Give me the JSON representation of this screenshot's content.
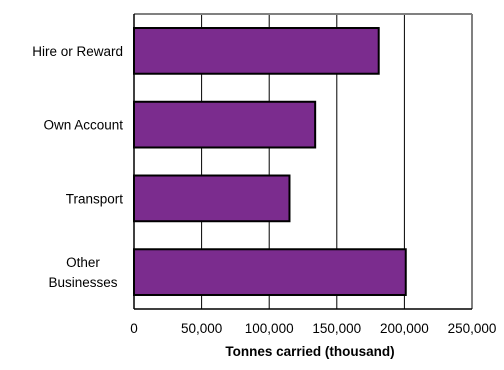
{
  "chart_data": {
    "type": "bar",
    "orientation": "horizontal",
    "categories": [
      [
        "Hire or Reward"
      ],
      [
        "Own Account"
      ],
      [
        "Transport"
      ],
      [
        "Other",
        "Businesses"
      ]
    ],
    "values": [
      181000,
      134000,
      115000,
      201000
    ],
    "xlabel": "Tonnes carried (thousand)",
    "ylabel": "",
    "title": "",
    "xlim": [
      0,
      250000
    ],
    "xticks": [
      0,
      50000,
      100000,
      150000,
      200000,
      250000
    ],
    "xtick_labels": [
      "0",
      "50,000",
      "100,000",
      "150,000",
      "200,000",
      "250,000"
    ],
    "grid": "vertical",
    "legend": "none",
    "colors": {
      "bar_fill": "#7B2C8E",
      "bar_stroke": "#000000",
      "grid": "#000000",
      "frame": "#808080"
    }
  }
}
